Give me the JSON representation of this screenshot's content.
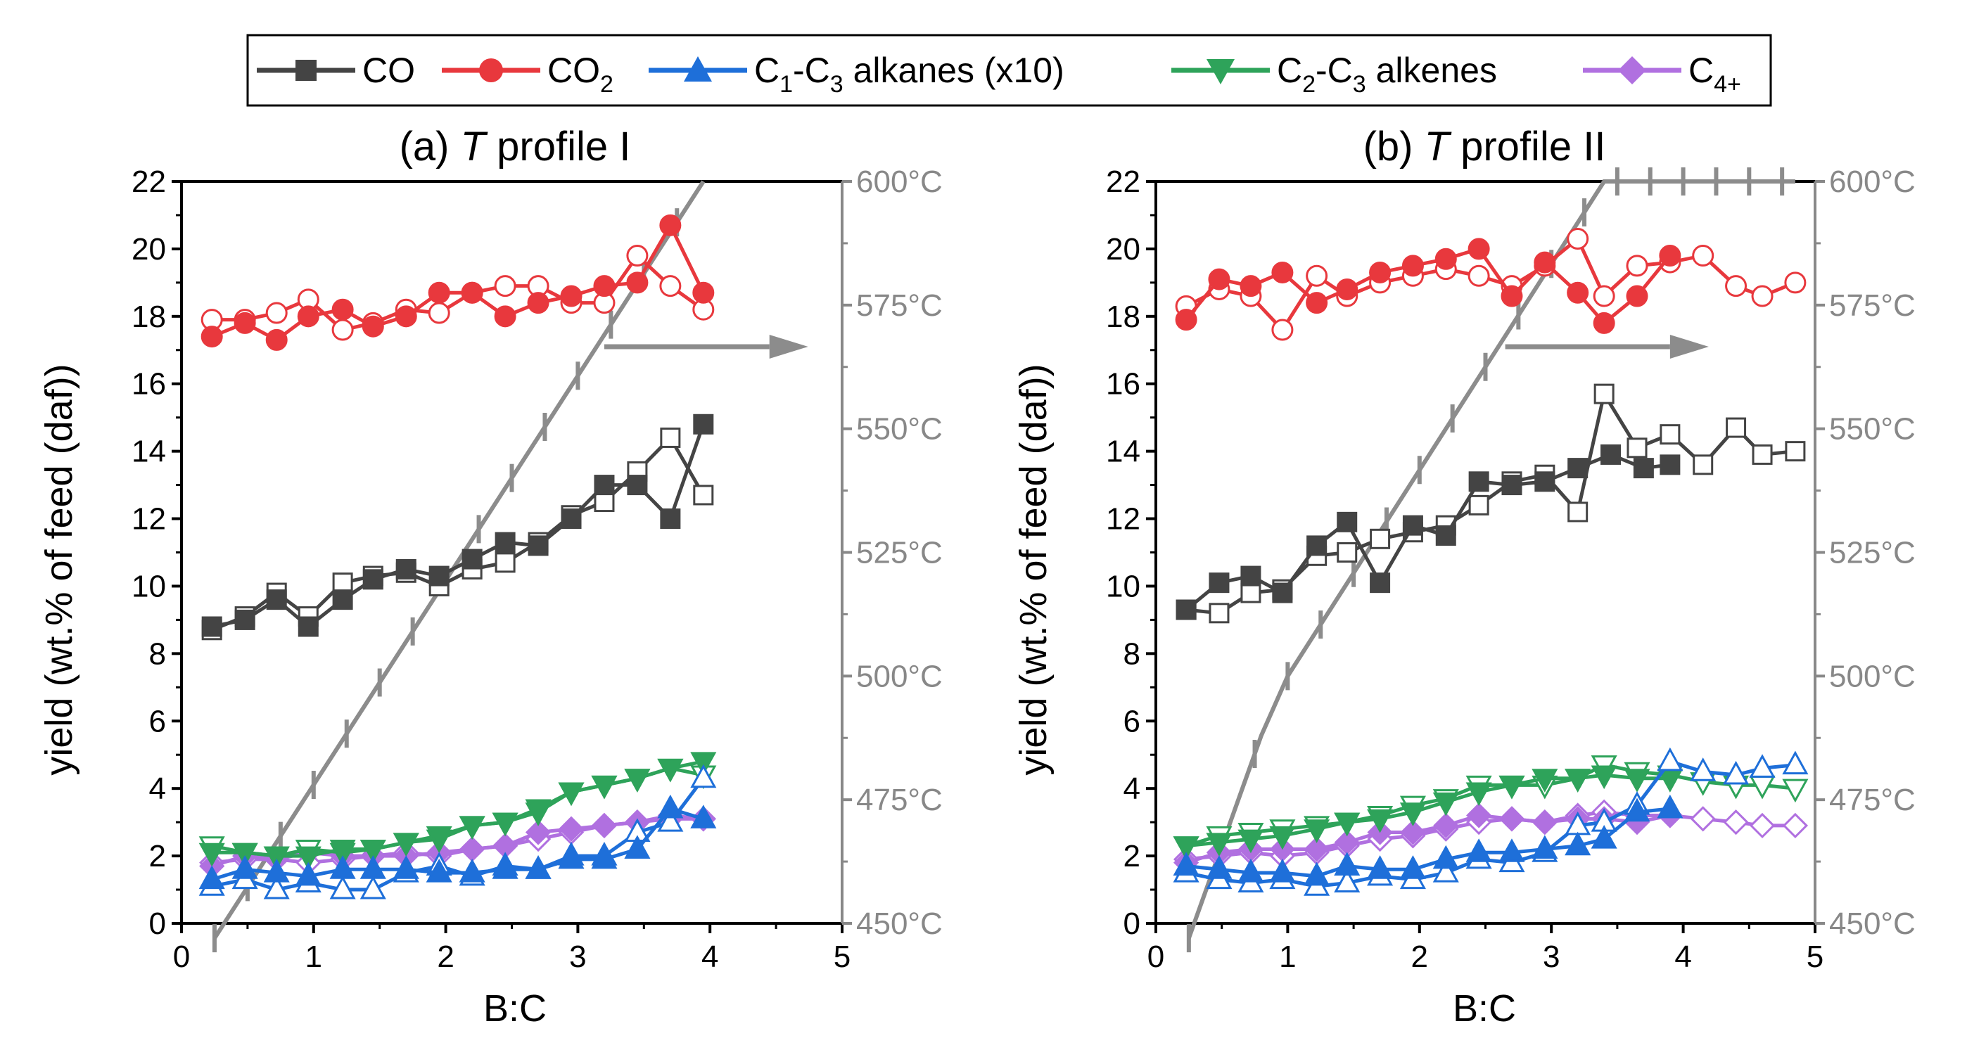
{
  "chart_data": {
    "type": "line",
    "legend": [
      {
        "key": "co",
        "label": "CO",
        "sub": "",
        "tail": "",
        "color": "#444444",
        "marker": "square"
      },
      {
        "key": "co2",
        "label": "CO",
        "sub": "2",
        "tail": "",
        "color": "#e8383d",
        "marker": "circle"
      },
      {
        "key": "alkanes",
        "label": "C",
        "sub": "1",
        "mid": "-C",
        "sub2": "3",
        "tail": " alkanes (x10)",
        "color": "#1e6fd9",
        "marker": "triangle-up"
      },
      {
        "key": "alkenes",
        "label": "C",
        "sub": "2",
        "mid": "-C",
        "sub2": "3",
        "tail": " alkenes",
        "color": "#2ea35a",
        "marker": "triangle-down"
      },
      {
        "key": "c4",
        "label": "C",
        "sub": "4+",
        "tail": "",
        "color": "#b070e0",
        "marker": "diamond"
      }
    ],
    "ylabel": "yield (wt.% of feed (daf))",
    "xlabel": "B:C",
    "xlim": [
      0,
      5
    ],
    "ylim": [
      0,
      22
    ],
    "xticks": [
      0,
      1,
      2,
      3,
      4,
      5
    ],
    "yticks": [
      0,
      2,
      4,
      6,
      8,
      10,
      12,
      14,
      16,
      18,
      20,
      22
    ],
    "temp_axis": {
      "range": [
        450,
        600
      ],
      "ticks": [
        450,
        475,
        500,
        525,
        550,
        575,
        600
      ],
      "unit": "°C",
      "color": "#888888"
    },
    "panels": [
      {
        "id": "a",
        "title_prefix": "(a) ",
        "title_italic": "T",
        "title_suffix": " profile I",
        "temperature": {
          "x": [
            0.25,
            3.95
          ],
          "y": [
            447,
            600
          ],
          "tick_step": 0.25
        },
        "series": {
          "co": {
            "filled": {
              "x": [
                0.23,
                0.48,
                0.72,
                0.96,
                1.22,
                1.45,
                1.7,
                1.95,
                2.2,
                2.45,
                2.7,
                2.95,
                3.2,
                3.45,
                3.7,
                3.95
              ],
              "y": [
                8.8,
                9.0,
                9.6,
                8.8,
                9.6,
                10.2,
                10.5,
                10.3,
                10.8,
                11.3,
                11.2,
                12.0,
                13.0,
                13.0,
                12.0,
                14.8
              ]
            },
            "open": {
              "x": [
                0.23,
                0.48,
                0.72,
                0.96,
                1.22,
                1.45,
                1.7,
                1.95,
                2.2,
                2.45,
                2.7,
                2.95,
                3.2,
                3.45,
                3.7,
                3.95
              ],
              "y": [
                8.7,
                9.1,
                9.8,
                9.1,
                10.1,
                10.3,
                10.4,
                10.0,
                10.5,
                10.7,
                11.3,
                12.1,
                12.5,
                13.4,
                14.4,
                12.7
              ]
            }
          },
          "co2": {
            "filled": {
              "x": [
                0.23,
                0.48,
                0.72,
                0.96,
                1.22,
                1.45,
                1.7,
                1.95,
                2.2,
                2.45,
                2.7,
                2.95,
                3.2,
                3.45,
                3.7,
                3.95
              ],
              "y": [
                17.4,
                17.8,
                17.3,
                18.0,
                18.2,
                17.7,
                18.0,
                18.7,
                18.7,
                18.0,
                18.4,
                18.6,
                18.9,
                19.0,
                20.7,
                18.7
              ]
            },
            "open": {
              "x": [
                0.23,
                0.48,
                0.72,
                0.96,
                1.22,
                1.45,
                1.7,
                1.95,
                2.2,
                2.45,
                2.7,
                2.95,
                3.2,
                3.45,
                3.7,
                3.95
              ],
              "y": [
                17.9,
                17.9,
                18.1,
                18.5,
                17.6,
                17.8,
                18.2,
                18.1,
                18.7,
                18.9,
                18.9,
                18.4,
                18.4,
                19.8,
                18.9,
                18.2
              ]
            }
          },
          "alkanes": {
            "filled": {
              "x": [
                0.23,
                0.48,
                0.72,
                0.96,
                1.22,
                1.45,
                1.7,
                1.95,
                2.2,
                2.45,
                2.7,
                2.95,
                3.2,
                3.45,
                3.7,
                3.95
              ],
              "y": [
                1.3,
                1.6,
                1.5,
                1.4,
                1.6,
                1.6,
                1.6,
                1.5,
                1.5,
                1.6,
                1.6,
                1.9,
                1.9,
                2.2,
                3.4,
                3.1
              ]
            },
            "open": {
              "x": [
                0.23,
                0.48,
                0.72,
                0.96,
                1.22,
                1.45,
                1.7,
                1.95,
                2.2,
                2.45,
                2.7,
                2.95,
                3.2,
                3.45,
                3.7,
                3.95
              ],
              "y": [
                1.1,
                1.3,
                1.0,
                1.2,
                1.0,
                1.0,
                1.5,
                1.7,
                1.4,
                1.7,
                1.6,
                2.0,
                2.0,
                2.7,
                3.0,
                4.3
              ]
            }
          },
          "alkenes": {
            "filled": {
              "x": [
                0.23,
                0.48,
                0.72,
                0.96,
                1.22,
                1.45,
                1.7,
                1.95,
                2.2,
                2.45,
                2.7,
                2.95,
                3.2,
                3.45,
                3.7,
                3.95
              ],
              "y": [
                2.1,
                2.1,
                2.0,
                2.0,
                2.2,
                2.2,
                2.4,
                2.6,
                2.9,
                3.0,
                3.4,
                3.9,
                4.1,
                4.3,
                4.6,
                4.8
              ]
            },
            "open": {
              "x": [
                0.23,
                0.48,
                0.72,
                0.96,
                1.22,
                1.45,
                1.7,
                1.95,
                2.2,
                2.45,
                2.7,
                2.95,
                3.2,
                3.45,
                3.7,
                3.95
              ],
              "y": [
                2.3,
                2.1,
                2.0,
                2.2,
                2.1,
                2.2,
                2.4,
                2.5,
                2.9,
                3.0,
                3.3,
                3.9,
                4.1,
                4.3,
                4.6,
                4.4
              ]
            }
          },
          "c4": {
            "filled": {
              "x": [
                0.23,
                0.48,
                0.72,
                0.96,
                1.22,
                1.45,
                1.7,
                1.95,
                2.2,
                2.45,
                2.7,
                2.95,
                3.2,
                3.45,
                3.7,
                3.95
              ],
              "y": [
                1.7,
                2.0,
                1.9,
                2.1,
                2.0,
                2.0,
                2.0,
                2.1,
                2.2,
                2.3,
                2.7,
                2.8,
                2.9,
                3.0,
                3.1,
                3.1
              ]
            },
            "open": {
              "x": [
                0.23,
                0.48,
                0.72,
                0.96,
                1.22,
                1.45,
                1.7,
                1.95,
                2.2,
                2.45,
                2.7,
                2.95,
                3.2,
                3.45,
                3.7,
                3.95
              ],
              "y": [
                1.8,
                1.9,
                1.9,
                1.8,
                1.9,
                2.0,
                2.1,
                2.0,
                2.2,
                2.3,
                2.5,
                2.7,
                2.9,
                3.0,
                3.2,
                3.1
              ]
            }
          }
        }
      },
      {
        "id": "b",
        "title_prefix": "(b) ",
        "title_italic": "T",
        "title_suffix": " profile II",
        "temperature": {
          "x": [
            0.25,
            0.8,
            1.0,
            3.4,
            4.85
          ],
          "y": [
            447,
            488,
            500,
            600,
            600
          ],
          "tick_step": 0.25
        },
        "series": {
          "co": {
            "filled": {
              "x": [
                0.23,
                0.48,
                0.72,
                0.96,
                1.22,
                1.45,
                1.7,
                1.95,
                2.2,
                2.45,
                2.7,
                2.95,
                3.2,
                3.45,
                3.7,
                3.9
              ],
              "y": [
                9.3,
                10.1,
                10.3,
                9.8,
                11.2,
                11.9,
                10.1,
                11.8,
                11.5,
                13.1,
                13.0,
                13.1,
                13.5,
                13.9,
                13.5,
                13.6
              ]
            },
            "open": {
              "x": [
                0.23,
                0.48,
                0.72,
                0.96,
                1.22,
                1.45,
                1.7,
                1.95,
                2.2,
                2.45,
                2.7,
                2.95,
                3.2,
                3.4,
                3.65,
                3.9,
                4.15,
                4.4,
                4.6,
                4.85
              ],
              "y": [
                9.3,
                9.2,
                9.8,
                9.9,
                10.9,
                11.0,
                11.4,
                11.6,
                11.8,
                12.4,
                13.1,
                13.3,
                12.2,
                15.7,
                14.1,
                14.5,
                13.6,
                14.7,
                13.9,
                14.0
              ]
            }
          },
          "co2": {
            "filled": {
              "x": [
                0.23,
                0.48,
                0.72,
                0.96,
                1.22,
                1.45,
                1.7,
                1.95,
                2.2,
                2.45,
                2.7,
                2.95,
                3.2,
                3.4,
                3.65,
                3.9
              ],
              "y": [
                17.9,
                19.1,
                18.9,
                19.3,
                18.4,
                18.8,
                19.3,
                19.5,
                19.7,
                20.0,
                18.6,
                19.6,
                18.7,
                17.8,
                18.6,
                19.8
              ]
            },
            "open": {
              "x": [
                0.23,
                0.48,
                0.72,
                0.96,
                1.22,
                1.45,
                1.7,
                1.95,
                2.2,
                2.45,
                2.7,
                2.95,
                3.2,
                3.4,
                3.65,
                3.9,
                4.15,
                4.4,
                4.6,
                4.85
              ],
              "y": [
                18.3,
                18.8,
                18.6,
                17.6,
                19.2,
                18.6,
                19.0,
                19.2,
                19.4,
                19.2,
                18.9,
                19.5,
                20.3,
                18.6,
                19.5,
                19.6,
                19.8,
                18.9,
                18.6,
                19.0
              ]
            }
          },
          "alkanes": {
            "filled": {
              "x": [
                0.23,
                0.48,
                0.72,
                0.96,
                1.22,
                1.45,
                1.7,
                1.95,
                2.2,
                2.45,
                2.7,
                2.95,
                3.2,
                3.4,
                3.65,
                3.9
              ],
              "y": [
                1.7,
                1.6,
                1.5,
                1.5,
                1.4,
                1.7,
                1.6,
                1.6,
                1.9,
                2.1,
                2.1,
                2.2,
                2.3,
                2.5,
                3.3,
                3.4
              ]
            },
            "open": {
              "x": [
                0.23,
                0.48,
                0.72,
                0.96,
                1.22,
                1.45,
                1.7,
                1.95,
                2.2,
                2.45,
                2.7,
                2.95,
                3.2,
                3.4,
                3.65,
                3.9,
                4.15,
                4.4,
                4.6,
                4.85
              ],
              "y": [
                1.5,
                1.3,
                1.2,
                1.3,
                1.1,
                1.2,
                1.4,
                1.3,
                1.5,
                1.9,
                1.8,
                2.1,
                2.9,
                3.0,
                3.5,
                4.8,
                4.5,
                4.4,
                4.6,
                4.7
              ]
            }
          },
          "alkenes": {
            "filled": {
              "x": [
                0.23,
                0.48,
                0.72,
                0.96,
                1.22,
                1.45,
                1.7,
                1.95,
                2.2,
                2.45,
                2.7,
                2.95,
                3.2,
                3.4,
                3.65,
                3.9
              ],
              "y": [
                2.3,
                2.4,
                2.5,
                2.6,
                2.8,
                3.0,
                3.1,
                3.3,
                3.6,
                3.9,
                4.1,
                4.3,
                4.3,
                4.4,
                4.3,
                4.3
              ]
            },
            "open": {
              "x": [
                0.23,
                0.48,
                0.72,
                0.96,
                1.22,
                1.45,
                1.7,
                1.95,
                2.2,
                2.45,
                2.7,
                2.95,
                3.2,
                3.4,
                3.65,
                3.9,
                4.15,
                4.4,
                4.6,
                4.85
              ],
              "y": [
                2.3,
                2.6,
                2.7,
                2.8,
                2.9,
                3.0,
                3.2,
                3.5,
                3.7,
                4.1,
                4.1,
                4.1,
                4.3,
                4.7,
                4.5,
                4.4,
                4.2,
                4.1,
                4.1,
                4.0
              ]
            }
          },
          "c4": {
            "filled": {
              "x": [
                0.23,
                0.48,
                0.72,
                0.96,
                1.22,
                1.45,
                1.7,
                1.95,
                2.2,
                2.45,
                2.7,
                2.95,
                3.2,
                3.4,
                3.65,
                3.9
              ],
              "y": [
                1.8,
                2.1,
                2.2,
                2.2,
                2.2,
                2.4,
                2.7,
                2.7,
                2.9,
                3.2,
                3.1,
                3.0,
                3.1,
                3.1,
                3.0,
                3.2
              ]
            },
            "open": {
              "x": [
                0.23,
                0.48,
                0.72,
                0.96,
                1.22,
                1.45,
                1.7,
                1.95,
                2.2,
                2.45,
                2.7,
                2.95,
                3.2,
                3.4,
                3.65,
                3.9,
                4.15,
                4.4,
                4.6,
                4.85
              ],
              "y": [
                1.9,
                2.0,
                2.1,
                2.0,
                2.1,
                2.3,
                2.5,
                2.6,
                2.8,
                3.0,
                3.1,
                3.0,
                3.2,
                3.3,
                3.2,
                3.2,
                3.1,
                3.0,
                2.9,
                2.9
              ]
            }
          }
        }
      }
    ]
  }
}
